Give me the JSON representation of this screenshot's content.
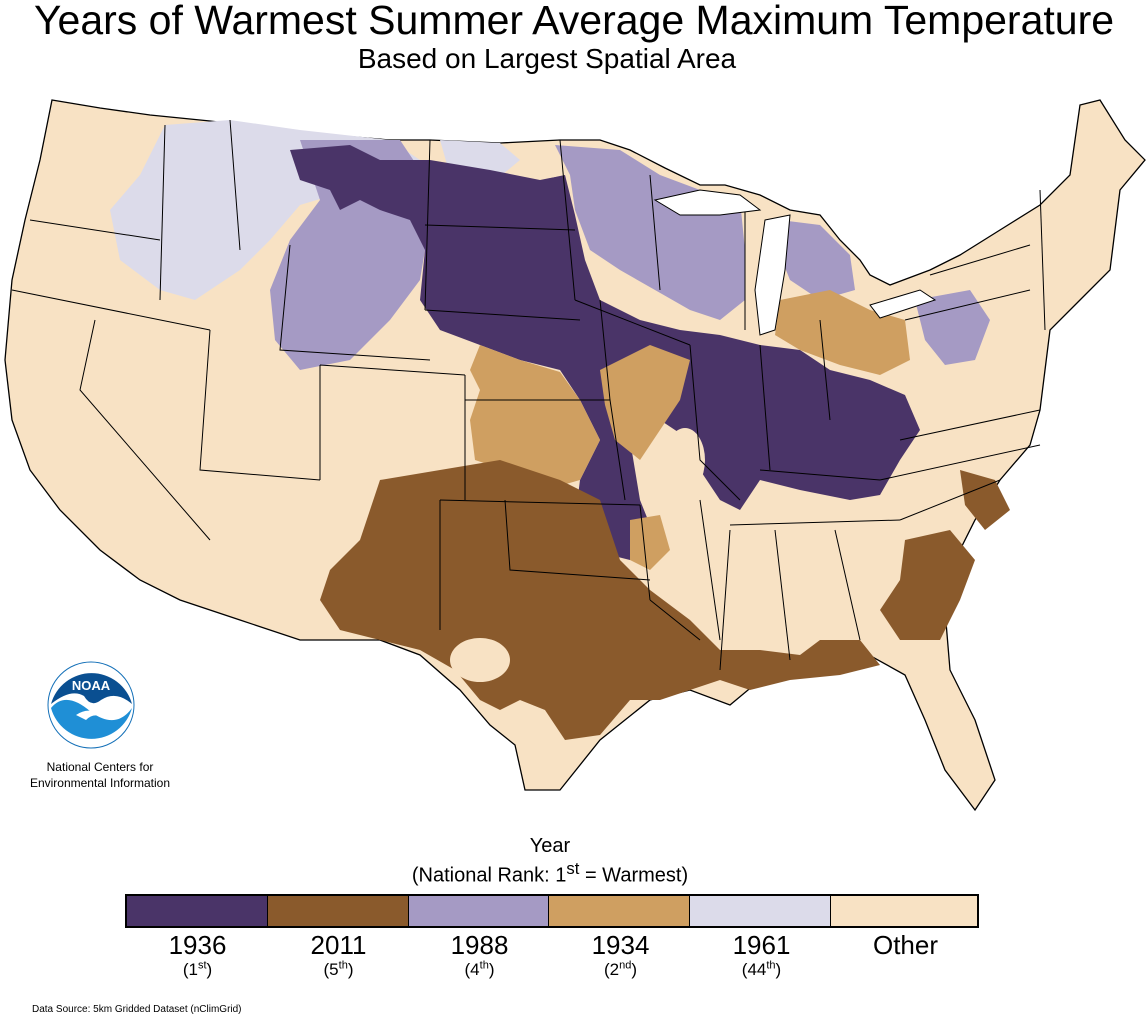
{
  "header": {
    "title": "Years of Warmest Summer Average Maximum Temperature",
    "subtitle": "Based on Largest Spatial Area"
  },
  "logo": {
    "text": "NOAA",
    "org_name": "National Centers for Environmental Information"
  },
  "legend": {
    "title": "Year",
    "subtitle": "(National Rank: 1",
    "subtitle_sup": "st",
    "subtitle_end": " = Warmest)",
    "items": [
      {
        "year": "1936",
        "rank_num": "1",
        "rank_sup": "st",
        "color": "#4a3468"
      },
      {
        "year": "2011",
        "rank_num": "5",
        "rank_sup": "th",
        "color": "#8a5a2c"
      },
      {
        "year": "1988",
        "rank_num": "4",
        "rank_sup": "th",
        "color": "#a59ac4"
      },
      {
        "year": "1934",
        "rank_num": "2",
        "rank_sup": "nd",
        "color": "#cf9f61"
      },
      {
        "year": "1961",
        "rank_num": "44",
        "rank_sup": "th",
        "color": "#dcdbea"
      },
      {
        "year": "Other",
        "rank_num": "",
        "rank_sup": "",
        "color": "#f8e2c4"
      }
    ]
  },
  "colors": {
    "background": "#ffffff",
    "border": "#000000",
    "noaa_blue": "#1470b8"
  },
  "footer": {
    "data_source": "Data Source: 5km Gridded Dataset (nClimGrid)"
  }
}
